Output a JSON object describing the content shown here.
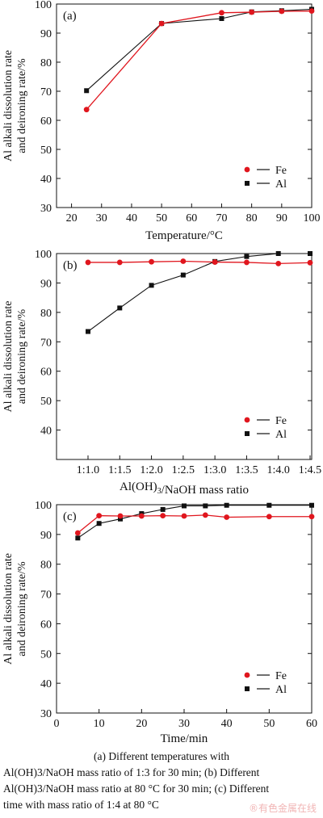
{
  "chart_data": [
    {
      "type": "line",
      "panel_label": "(a)",
      "xlabel": "Temperature/°C",
      "ylabel": [
        "Al alkali dissolution rate",
        "and deironing rate/%"
      ],
      "x": [
        25,
        50,
        70,
        80,
        90,
        100
      ],
      "xlim": [
        15,
        100
      ],
      "ylim": [
        30,
        100
      ],
      "xticks": [
        20,
        30,
        40,
        50,
        60,
        70,
        80,
        90,
        100
      ],
      "yticks": [
        30,
        40,
        50,
        60,
        70,
        80,
        90,
        100
      ],
      "legend": "lower-right",
      "grid": false,
      "series": [
        {
          "name": "Fe",
          "color": "#e0161e",
          "marker": "circle",
          "values": [
            63.7,
            93.3,
            97.0,
            97.2,
            97.5,
            97.6
          ]
        },
        {
          "name": "Al",
          "color": "#111111",
          "marker": "square",
          "values": [
            70.2,
            93.3,
            95.0,
            97.3,
            97.7,
            98.2
          ]
        }
      ]
    },
    {
      "type": "line",
      "panel_label": "(b)",
      "xlabel": "Al(OH)3/NaOH mass ratio",
      "ylabel": [
        "Al alkali dissolution rate",
        "and deironing rate/%"
      ],
      "categories": [
        "1:1.0",
        "1:1.5",
        "1:2.0",
        "1:2.5",
        "1:3.0",
        "1:3.5",
        "1:4.0",
        "1:4.5"
      ],
      "ylim": [
        30,
        100
      ],
      "yticks": [
        40,
        50,
        60,
        70,
        80,
        90,
        100
      ],
      "legend": "lower-right",
      "grid": false,
      "series": [
        {
          "name": "Fe",
          "color": "#e0161e",
          "marker": "circle",
          "values": [
            97.0,
            97.0,
            97.2,
            97.4,
            97.1,
            97.0,
            96.6,
            96.9
          ]
        },
        {
          "name": "Al",
          "color": "#111111",
          "marker": "square",
          "values": [
            73.5,
            81.5,
            89.2,
            92.7,
            97.3,
            99.0,
            100.0,
            100.0
          ]
        }
      ]
    },
    {
      "type": "line",
      "panel_label": "(c)",
      "xlabel": "Time/min",
      "ylabel": [
        "Al alkali dissolution rate",
        "and deironing rate/%"
      ],
      "x": [
        5,
        10,
        15,
        20,
        25,
        30,
        35,
        40,
        50,
        60
      ],
      "xlim": [
        0,
        60
      ],
      "ylim": [
        30,
        100
      ],
      "xticks": [
        0,
        10,
        20,
        30,
        40,
        50,
        60
      ],
      "yticks": [
        30,
        40,
        50,
        60,
        70,
        80,
        90,
        100
      ],
      "legend": "lower-right",
      "grid": false,
      "series": [
        {
          "name": "Fe",
          "color": "#e0161e",
          "marker": "circle",
          "values": [
            90.5,
            96.3,
            96.2,
            96.2,
            96.3,
            96.2,
            96.5,
            95.8,
            96.0,
            96.0
          ]
        },
        {
          "name": "Al",
          "color": "#111111",
          "marker": "square",
          "values": [
            88.8,
            93.7,
            95.2,
            97.0,
            98.4,
            99.6,
            99.6,
            99.8,
            99.8,
            99.8
          ]
        }
      ]
    }
  ],
  "caption": {
    "line1": "(a)   Different   temperatures   with",
    "line2": "Al(OH)3/NaOH mass ratio of 1:3 for 30 min; (b) Different",
    "line3": "Al(OH)3/NaOH mass ratio at 80 °C for 30 min; (c) Different",
    "line4": "time with mass ratio of 1:4 at 80 °C"
  },
  "watermark": "®有色金属在线"
}
